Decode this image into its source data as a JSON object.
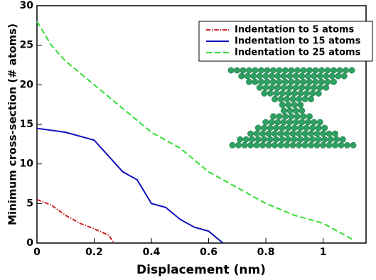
{
  "chart_data": {
    "type": "line",
    "xlabel": "Displacement (nm)",
    "ylabel": "Minimum cross-section (# atoms)",
    "xlim": [
      0,
      1.15
    ],
    "xticks": [
      0,
      0.2,
      0.4,
      0.6,
      0.8,
      1
    ],
    "ylim": [
      0,
      30
    ],
    "yticks": [
      0,
      5,
      10,
      15,
      20,
      25,
      30
    ],
    "legend": "upper right",
    "series": [
      {
        "name": "Indentation to 5 atoms",
        "color": "#cc2222",
        "dash": "dashdot",
        "x": [
          0,
          0.05,
          0.1,
          0.15,
          0.2,
          0.25,
          0.27
        ],
        "values": [
          5.5,
          4.8,
          3.5,
          2.5,
          1.8,
          1,
          0
        ]
      },
      {
        "name": "Indentation to 15 atoms",
        "color": "#1010c0",
        "dash": "solid",
        "x": [
          0,
          0.1,
          0.2,
          0.25,
          0.3,
          0.35,
          0.4,
          0.45,
          0.5,
          0.55,
          0.6,
          0.65
        ],
        "values": [
          14.5,
          14,
          13,
          11,
          9,
          8,
          5,
          4.5,
          3,
          2,
          1.5,
          0
        ]
      },
      {
        "name": "Indentation to 25 atoms",
        "color": "#33dd33",
        "dash": "dashed",
        "x": [
          0,
          0.05,
          0.1,
          0.2,
          0.3,
          0.4,
          0.5,
          0.6,
          0.7,
          0.8,
          0.9,
          1.0,
          1.1
        ],
        "values": [
          28,
          25,
          23,
          20,
          17,
          14,
          12,
          9,
          7,
          5,
          3.5,
          2.5,
          0.5
        ]
      }
    ]
  }
}
